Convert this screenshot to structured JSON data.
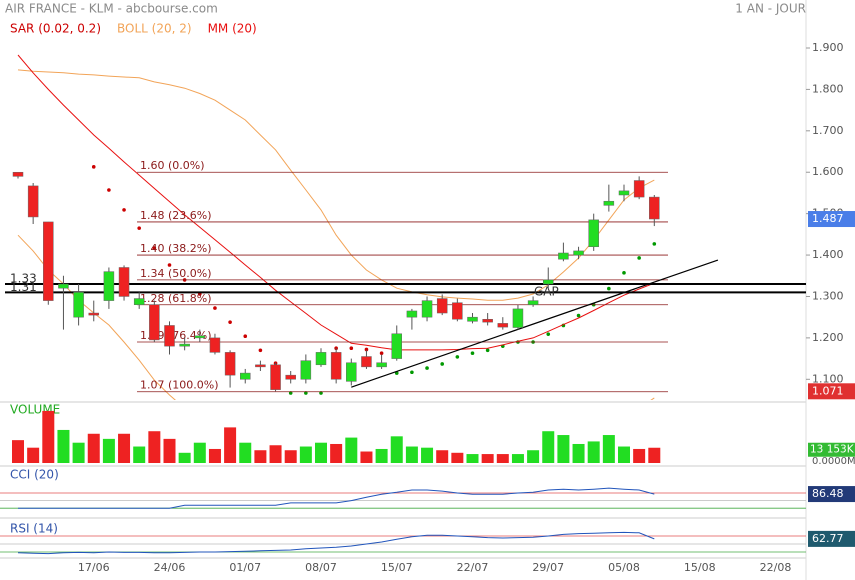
{
  "header": {
    "title": "AIR FRANCE - KLM - abcbourse.com",
    "period": "1 AN - JOUR"
  },
  "chart_data": [
    {
      "type": "candlestick",
      "categories": [
        null,
        null,
        null,
        null,
        null,
        "17/06",
        null,
        null,
        null,
        null,
        "24/06",
        null,
        null,
        null,
        null,
        "01/07",
        null,
        null,
        null,
        null,
        "08/07",
        null,
        null,
        null,
        null,
        "15/07",
        null,
        null,
        null,
        null,
        "22/07",
        null,
        null,
        null,
        null,
        "29/07",
        null,
        null,
        null,
        null,
        "05/08",
        null,
        null,
        null,
        null,
        "15/08",
        null,
        null,
        null,
        null,
        "22/08"
      ],
      "open": [
        1.6,
        1.567,
        1.48,
        1.32,
        1.25,
        1.26,
        1.29,
        1.37,
        1.28,
        1.28,
        1.23,
        1.18,
        1.2,
        1.2,
        1.165,
        1.1,
        1.135,
        1.135,
        1.11,
        1.1,
        1.135,
        1.165,
        1.095,
        1.155,
        1.13,
        1.15,
        1.25,
        1.25,
        1.295,
        1.285,
        1.24,
        1.245,
        1.235,
        1.225,
        1.28,
        1.33,
        1.39,
        1.4,
        1.42,
        1.52,
        1.545,
        1.58,
        1.54,
        null,
        null,
        null,
        null,
        null,
        null,
        null,
        null
      ],
      "high": [
        1.6,
        1.574,
        1.48,
        1.35,
        1.33,
        1.29,
        1.37,
        1.375,
        1.31,
        1.29,
        1.24,
        1.2,
        1.22,
        1.21,
        1.17,
        1.125,
        1.145,
        1.14,
        1.12,
        1.16,
        1.175,
        1.175,
        1.15,
        1.17,
        1.16,
        1.23,
        1.27,
        1.3,
        1.305,
        1.295,
        1.26,
        1.26,
        1.25,
        1.28,
        1.3,
        1.37,
        1.43,
        1.42,
        1.5,
        1.57,
        1.57,
        1.59,
        1.545,
        null,
        null,
        null,
        null,
        null,
        null,
        null,
        null
      ],
      "low": [
        1.585,
        1.475,
        1.28,
        1.22,
        1.23,
        1.24,
        1.27,
        1.29,
        1.27,
        1.19,
        1.16,
        1.17,
        1.19,
        1.16,
        1.08,
        1.09,
        1.12,
        1.071,
        1.09,
        1.09,
        1.13,
        1.09,
        1.085,
        1.125,
        1.125,
        1.145,
        1.22,
        1.24,
        1.255,
        1.24,
        1.235,
        1.23,
        1.22,
        1.22,
        1.275,
        1.32,
        1.385,
        1.39,
        1.41,
        1.505,
        1.53,
        1.535,
        1.47,
        null,
        null,
        null,
        null,
        null,
        null,
        null,
        null
      ],
      "close": [
        1.59,
        1.492,
        1.29,
        1.33,
        1.31,
        1.255,
        1.36,
        1.3,
        1.295,
        1.195,
        1.18,
        1.185,
        1.205,
        1.165,
        1.11,
        1.115,
        1.13,
        1.075,
        1.1,
        1.145,
        1.165,
        1.1,
        1.14,
        1.13,
        1.14,
        1.21,
        1.265,
        1.29,
        1.26,
        1.245,
        1.25,
        1.238,
        1.226,
        1.27,
        1.29,
        1.34,
        1.405,
        1.41,
        1.485,
        1.53,
        1.555,
        1.54,
        1.487,
        null,
        null,
        null,
        null,
        null,
        null,
        null,
        null
      ],
      "up_color": "#22dd22",
      "down_color": "#ee2222",
      "series": [
        {
          "name": "SAR (0.02, 0.2)",
          "color": "#cc0000",
          "below_color": "#009900",
          "values": [
            null,
            null,
            null,
            null,
            null,
            1.613,
            1.557,
            1.509,
            1.465,
            1.417,
            1.376,
            1.34,
            1.306,
            1.272,
            1.238,
            1.204,
            1.17,
            1.139,
            1.067,
            1.067,
            1.067,
            1.175,
            1.175,
            1.172,
            1.163,
            1.115,
            1.117,
            1.127,
            1.137,
            1.154,
            1.163,
            1.17,
            1.18,
            1.19,
            1.19,
            1.209,
            1.23,
            1.254,
            1.28,
            1.319,
            1.357,
            1.393,
            1.427,
            null,
            null,
            null,
            null,
            null,
            null,
            null,
            null
          ]
        },
        {
          "name": "BOLL (20, 2)",
          "color": "#f2a458",
          "values": [
            1.847,
            1.844,
            1.842,
            1.84,
            1.837,
            1.835,
            1.832,
            1.83,
            1.828,
            1.818,
            1.811,
            1.803,
            1.79,
            1.774,
            1.75,
            1.726,
            1.69,
            1.654,
            1.605,
            1.557,
            1.509,
            1.448,
            1.4,
            1.364,
            1.34,
            1.32,
            1.311,
            1.304,
            1.299,
            1.296,
            1.294,
            1.291,
            1.291,
            1.296,
            1.306,
            1.328,
            1.359,
            1.393,
            1.436,
            1.485,
            1.533,
            1.562,
            1.581,
            null,
            null,
            null,
            null,
            null,
            null,
            null,
            null
          ],
          "lower": [
            1.448,
            1.41,
            1.364,
            1.33,
            1.291,
            1.26,
            1.231,
            1.19,
            1.146,
            1.098,
            1.062,
            1.03,
            1.0,
            0.98,
            0.96,
            0.95,
            0.95,
            0.95,
            0.95,
            0.96,
            0.97,
            0.98,
            0.99,
            1.0,
            1.0,
            1.0,
            1.0,
            1.01,
            1.02,
            1.03,
            1.04,
            1.04,
            1.04,
            1.04,
            1.04,
            1.03,
            1.02,
            1.01,
            1.0,
            1.0,
            1.01,
            1.03,
            1.055,
            null,
            null,
            null,
            null,
            null,
            null,
            null,
            null
          ]
        },
        {
          "name": "MM (20)",
          "color": "#e81010",
          "values": [
            1.883,
            1.84,
            1.8,
            1.762,
            1.726,
            1.69,
            1.658,
            1.625,
            1.593,
            1.561,
            1.529,
            1.497,
            1.467,
            1.437,
            1.407,
            1.376,
            1.346,
            1.315,
            1.287,
            1.259,
            1.231,
            1.209,
            1.187,
            1.182,
            1.176,
            1.171,
            1.171,
            1.171,
            1.171,
            1.172,
            1.174,
            1.175,
            1.183,
            1.192,
            1.2,
            1.216,
            1.232,
            1.248,
            1.266,
            1.285,
            1.303,
            1.318,
            1.332,
            null,
            null,
            null,
            null,
            null,
            null,
            null,
            null
          ]
        }
      ],
      "fibonacci": [
        {
          "value": 1.6,
          "label": "1.60  (0.0%)"
        },
        {
          "value": 1.48,
          "label": "1.48  (23.6%)"
        },
        {
          "value": 1.4,
          "label": "1.40  (38.2%)"
        },
        {
          "value": 1.34,
          "label": "1.34  (50.0%)"
        },
        {
          "value": 1.28,
          "label": "1.28  (61.8%)"
        },
        {
          "value": 1.19,
          "label": "1.19  (76.4%)"
        },
        {
          "value": 1.07,
          "label": "1.07  (100.0%)"
        }
      ],
      "fib_color": "#8b1a1a",
      "levels": [
        1.33,
        1.31
      ],
      "trendline": {
        "x": [
          22,
          46.2
        ],
        "values": [
          1.081,
          1.388
        ]
      },
      "annotation": "GAP",
      "ylim": [
        1.05,
        1.97
      ],
      "yticks": [
        {
          "value": 1.9,
          "label": "1.900"
        },
        {
          "value": 1.8,
          "label": "1.800"
        },
        {
          "value": 1.7,
          "label": "1.700"
        },
        {
          "value": 1.6,
          "label": "1.600"
        },
        {
          "value": 1.5,
          "label": "1.500"
        },
        {
          "value": 1.4,
          "label": "1.400"
        },
        {
          "value": 1.3,
          "label": "1.300"
        },
        {
          "value": 1.2,
          "label": "1.200"
        },
        {
          "value": 1.1,
          "label": "1.100"
        }
      ]
    },
    {
      "type": "bar",
      "title": "VOLUME",
      "title_color": "#22aa22",
      "values": [
        19700,
        13200,
        44900,
        28500,
        17500,
        25200,
        20800,
        25200,
        14200,
        27400,
        20800,
        8800,
        17500,
        12100,
        30700,
        17500,
        11000,
        15300,
        11000,
        14200,
        17500,
        16400,
        21900,
        9900,
        12100,
        23000,
        14200,
        13200,
        11000,
        8800,
        7700,
        7700,
        7700,
        7700,
        11000,
        27400,
        24100,
        16400,
        18600,
        24100,
        14200,
        12100,
        13153,
        null,
        null,
        null,
        null,
        null,
        null,
        null,
        null
      ],
      "value_labels": [
        null,
        null,
        null,
        null,
        null,
        null,
        null,
        null,
        null,
        null,
        null,
        null,
        null,
        null,
        null,
        null,
        null,
        null,
        null,
        null,
        null,
        null,
        null,
        null,
        null,
        null,
        null,
        null,
        null,
        null,
        null,
        null,
        null,
        null,
        null,
        null,
        null,
        null,
        null,
        null,
        null,
        null,
        "13 153K",
        null,
        null,
        null,
        null,
        null,
        null,
        null,
        null
      ],
      "ylim": [
        0,
        50000
      ],
      "yticks": [
        {
          "value": 0,
          "label": "0.0000M"
        }
      ]
    },
    {
      "type": "line",
      "title": "CCI (20)",
      "title_color": "#3355aa",
      "color": "#2255bb",
      "values": [
        -100,
        -100,
        -100,
        -100,
        -100,
        -100,
        -100,
        -100,
        -100,
        -100,
        -100,
        -60,
        -60,
        -60,
        -60,
        -60,
        -60,
        -60,
        -30,
        -30,
        -30,
        -30,
        0,
        45,
        85,
        110,
        140,
        140,
        125,
        100,
        85,
        85,
        85,
        100,
        110,
        140,
        150,
        140,
        150,
        165,
        150,
        140,
        86.48,
        null,
        null,
        null,
        null,
        null,
        null,
        null,
        null
      ],
      "levels": [
        {
          "value": 100,
          "color": "#e05050"
        },
        {
          "value": 0,
          "color": "#bbbbbb"
        },
        {
          "value": -100,
          "color": "#44aa44"
        }
      ],
      "ylim": [
        -150,
        430
      ]
    },
    {
      "type": "line",
      "title": "RSI (14)",
      "title_color": "#3355aa",
      "color": "#2255bb",
      "values": [
        28,
        27,
        26,
        28,
        29,
        28,
        30,
        29,
        29,
        28,
        28,
        29,
        30,
        30,
        31,
        32,
        33,
        34,
        35,
        38,
        40,
        42,
        45,
        50,
        55,
        62,
        68,
        72,
        72,
        70,
        68,
        66,
        65,
        66,
        67,
        70,
        74,
        76,
        77,
        78,
        79,
        78,
        62.77,
        null,
        null,
        null,
        null,
        null,
        null,
        null,
        null
      ],
      "levels": [
        {
          "value": 70,
          "color": "#e05050"
        },
        {
          "value": 50,
          "color": "#bbbbbb"
        },
        {
          "value": 30,
          "color": "#44aa44"
        }
      ],
      "ylim": [
        20,
        105
      ]
    }
  ]
}
